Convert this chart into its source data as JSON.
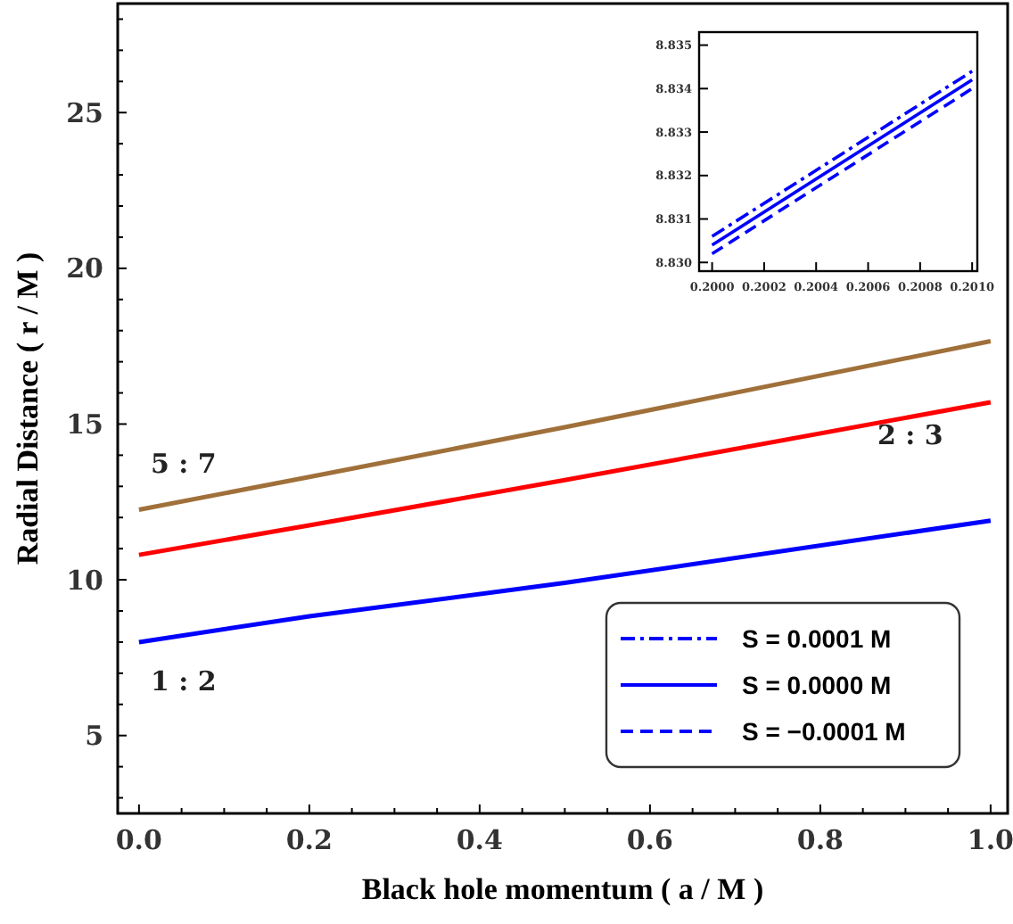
{
  "chart_data": [
    {
      "type": "line",
      "xlabel": "Black hole momentum ( a / M )",
      "ylabel": "Radial Distance ( r / M )",
      "xlim": [
        -0.025,
        1.02
      ],
      "ylim": [
        2.5,
        28.5
      ],
      "xticks": [
        {
          "value": 0,
          "label": "0.0"
        },
        {
          "value": 0.05,
          "label": null
        },
        {
          "value": 0.1,
          "label": null
        },
        {
          "value": 0.15,
          "label": null
        },
        {
          "value": 0.2,
          "label": "0.2"
        },
        {
          "value": 0.25,
          "label": null
        },
        {
          "value": 0.3,
          "label": null
        },
        {
          "value": 0.35,
          "label": null
        },
        {
          "value": 0.4,
          "label": "0.4"
        },
        {
          "value": 0.45,
          "label": null
        },
        {
          "value": 0.5,
          "label": null
        },
        {
          "value": 0.55,
          "label": null
        },
        {
          "value": 0.6,
          "label": "0.6"
        },
        {
          "value": 0.65,
          "label": null
        },
        {
          "value": 0.7,
          "label": null
        },
        {
          "value": 0.75,
          "label": null
        },
        {
          "value": 0.8,
          "label": "0.8"
        },
        {
          "value": 0.85,
          "label": null
        },
        {
          "value": 0.9,
          "label": null
        },
        {
          "value": 0.95,
          "label": null
        },
        {
          "value": 1,
          "label": "1.0"
        }
      ],
      "yticks": [
        {
          "value": 3,
          "label": null
        },
        {
          "value": 4,
          "label": null
        },
        5,
        {
          "value": 6,
          "label": null
        },
        {
          "value": 7,
          "label": null
        },
        {
          "value": 8,
          "label": null
        },
        {
          "value": 9,
          "label": null
        },
        10,
        {
          "value": 11,
          "label": null
        },
        {
          "value": 12,
          "label": null
        },
        {
          "value": 13,
          "label": null
        },
        {
          "value": 14,
          "label": null
        },
        15,
        {
          "value": 16,
          "label": null
        },
        {
          "value": 17,
          "label": null
        },
        {
          "value": 18,
          "label": null
        },
        {
          "value": 19,
          "label": null
        },
        20,
        {
          "value": 21,
          "label": null
        },
        {
          "value": 22,
          "label": null
        },
        {
          "value": 23,
          "label": null
        },
        {
          "value": 24,
          "label": null
        },
        25,
        {
          "value": 26,
          "label": null
        },
        {
          "value": 27,
          "label": null
        },
        {
          "value": 28,
          "label": null
        }
      ],
      "x": [
        0,
        0.2,
        0.5,
        1
      ],
      "series": [
        {
          "name": "5 : 7",
          "color": "#a0703a",
          "values": [
            12.25,
            13.3,
            14.9,
            17.66
          ]
        },
        {
          "name": "2 : 3",
          "color": "#ff0000",
          "values": [
            10.8,
            11.75,
            13.2,
            15.7
          ]
        },
        {
          "name": "1 : 2",
          "color": "#0000ff",
          "values": [
            8.0,
            8.83,
            9.9,
            11.9
          ]
        }
      ]
    },
    {
      "type": "line",
      "xlim": [
        0.19995,
        0.20102
      ],
      "ylim": [
        8.8298,
        8.8353
      ],
      "xticks": [
        {
          "value": 0.2,
          "label": "0.2000"
        },
        {
          "value": 0.2002,
          "label": "0.2002"
        },
        {
          "value": 0.2004,
          "label": "0.2004"
        },
        {
          "value": 0.2006,
          "label": "0.2006"
        },
        {
          "value": 0.2008,
          "label": "0.2008"
        },
        {
          "value": 0.201,
          "label": "0.2010"
        }
      ],
      "yticks": [
        {
          "value": 8.83,
          "label": "8.830"
        },
        8.831,
        8.832,
        8.833,
        8.834,
        8.835
      ],
      "x": [
        0.2,
        0.201
      ],
      "series": [
        {
          "name": "S = 0.0001 M",
          "color": "#0000ff",
          "line_style": "dashdot",
          "values": [
            8.8306,
            8.8344
          ]
        },
        {
          "name": "S = 0.0000 M",
          "color": "#0000ff",
          "line_style": "solid",
          "values": [
            8.8304,
            8.8342
          ]
        },
        {
          "name": "S = −0.0001 M",
          "color": "#0000ff",
          "line_style": "dashed",
          "values": [
            8.8302,
            8.834
          ]
        }
      ],
      "legend": "bottom"
    }
  ]
}
